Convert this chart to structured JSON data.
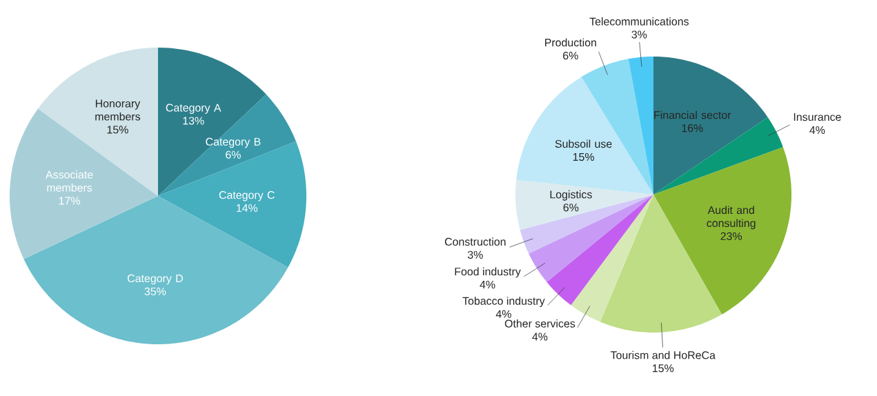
{
  "chart_data": [
    {
      "type": "pie",
      "categories": [
        "Category A",
        "Category B",
        "Category C",
        "Category D",
        "Associate members",
        "Honorary members"
      ],
      "values": [
        13,
        6,
        14,
        35,
        17,
        15
      ],
      "value_labels": [
        "13%",
        "6%",
        "14%",
        "35%",
        "17%",
        "15%"
      ],
      "colors": [
        "#2e7f8c",
        "#3a9aaa",
        "#45aebf",
        "#6cbfcc",
        "#a8cfd8",
        "#cfe3e8"
      ]
    },
    {
      "type": "pie",
      "categories": [
        "Financial sector",
        "Insurance",
        "Audit and consulting",
        "Tourism and HoReCa",
        "Other services",
        "Tobacco industry",
        "Food industry",
        "Construction",
        "Logistics",
        "Subsoil use",
        "Production",
        "Telecommunications"
      ],
      "values": [
        16,
        4,
        23,
        15,
        4,
        4,
        4,
        3,
        6,
        15,
        6,
        3
      ],
      "value_labels": [
        "16%",
        "4%",
        "23%",
        "15%",
        "4%",
        "4%",
        "4%",
        "3%",
        "6%",
        "15%",
        "6%",
        "3%"
      ],
      "colors": [
        "#2c7a85",
        "#0a9a78",
        "#8ab833",
        "#bedd84",
        "#d7eab5",
        "#c45ef0",
        "#c89af5",
        "#d3c8f8",
        "#dcebef",
        "#bfe9f8",
        "#8adcf5",
        "#4cc8f5"
      ]
    }
  ]
}
